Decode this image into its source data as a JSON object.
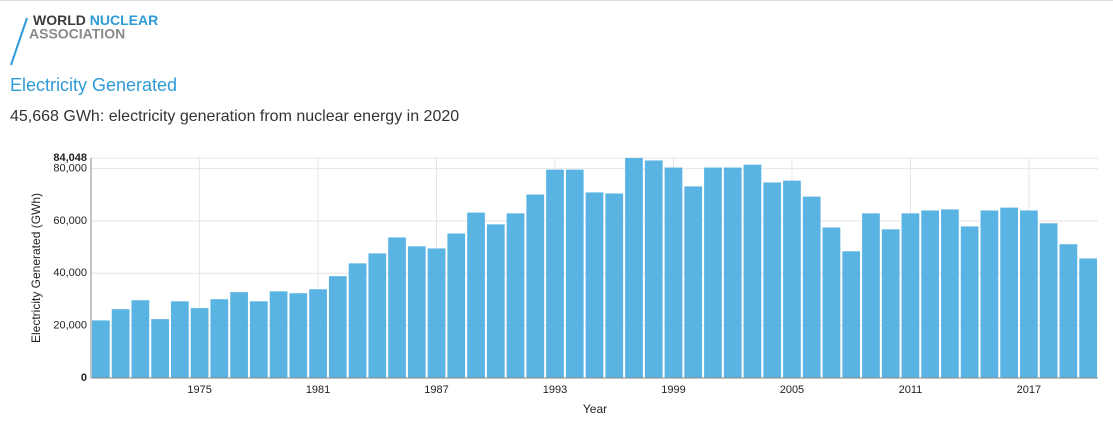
{
  "logo": {
    "word1": "WORLD",
    "word2": "NUCLEAR",
    "word3": "ASSOCIATION"
  },
  "heading": "Electricity Generated",
  "summary": "45,668 GWh: electricity generation from nuclear energy in 2020",
  "chart_data": {
    "type": "bar",
    "x": [
      1970,
      1971,
      1972,
      1973,
      1974,
      1975,
      1976,
      1977,
      1978,
      1979,
      1980,
      1981,
      1982,
      1983,
      1984,
      1985,
      1986,
      1987,
      1988,
      1989,
      1990,
      1991,
      1992,
      1993,
      1994,
      1995,
      1996,
      1997,
      1998,
      1999,
      2000,
      2001,
      2002,
      2003,
      2004,
      2005,
      2006,
      2007,
      2008,
      2009,
      2010,
      2011,
      2012,
      2013,
      2014,
      2015,
      2016,
      2017,
      2018,
      2019,
      2020
    ],
    "values": [
      22000,
      26300,
      29700,
      22500,
      29300,
      26700,
      30100,
      32800,
      29300,
      33100,
      32400,
      33900,
      38900,
      43800,
      47600,
      53700,
      50300,
      49500,
      55200,
      63200,
      58700,
      62900,
      70100,
      79600,
      79600,
      70900,
      70500,
      84048,
      83100,
      80400,
      73200,
      80400,
      80400,
      81500,
      74700,
      75400,
      69300,
      57500,
      48400,
      62900,
      56800,
      62900,
      64000,
      64400,
      57900,
      64000,
      65100,
      64000,
      59100,
      51100,
      45668
    ],
    "color": "#5ab4e3",
    "x_label": "Year",
    "y_label": "Electricity Generated (GWh)",
    "xlim": [
      1969.5,
      2020.5
    ],
    "xticks": [
      1975,
      1981,
      1987,
      1993,
      1999,
      2005,
      2011,
      2017
    ],
    "ylim": [
      0,
      84048
    ],
    "yticks": [
      0,
      {
        "value": 20000,
        "label": "20,000"
      },
      {
        "value": 40000,
        "label": "40,000"
      },
      {
        "value": 60000,
        "label": "60,000"
      },
      {
        "value": 80000,
        "label": "80,000"
      },
      {
        "value": 84048,
        "label": "84,048"
      }
    ],
    "grid": true
  }
}
